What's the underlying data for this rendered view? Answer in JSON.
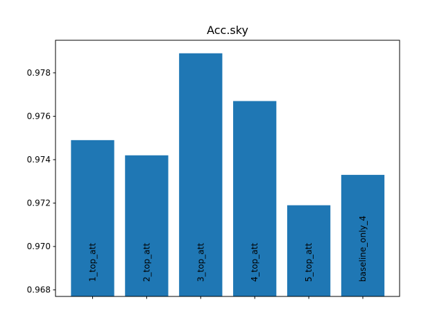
{
  "chart_data": {
    "type": "bar",
    "title": "Acc.sky",
    "xlabel": "",
    "ylabel": "",
    "categories": [
      "1_top_att",
      "2_top_att",
      "3_top_att",
      "4_top_att",
      "5_top_att",
      "baseline_only_4"
    ],
    "values": [
      0.9749,
      0.9742,
      0.9789,
      0.9767,
      0.9719,
      0.9733
    ],
    "ylim": [
      0.9677,
      0.9795
    ],
    "yticks": [
      0.968,
      0.97,
      0.972,
      0.974,
      0.976,
      0.978
    ],
    "ytick_labels": [
      "0.968",
      "0.970",
      "0.972",
      "0.974",
      "0.976",
      "0.978"
    ],
    "bar_color": "#1f77b4",
    "grid": false,
    "category_labels_inside_bars": true
  }
}
